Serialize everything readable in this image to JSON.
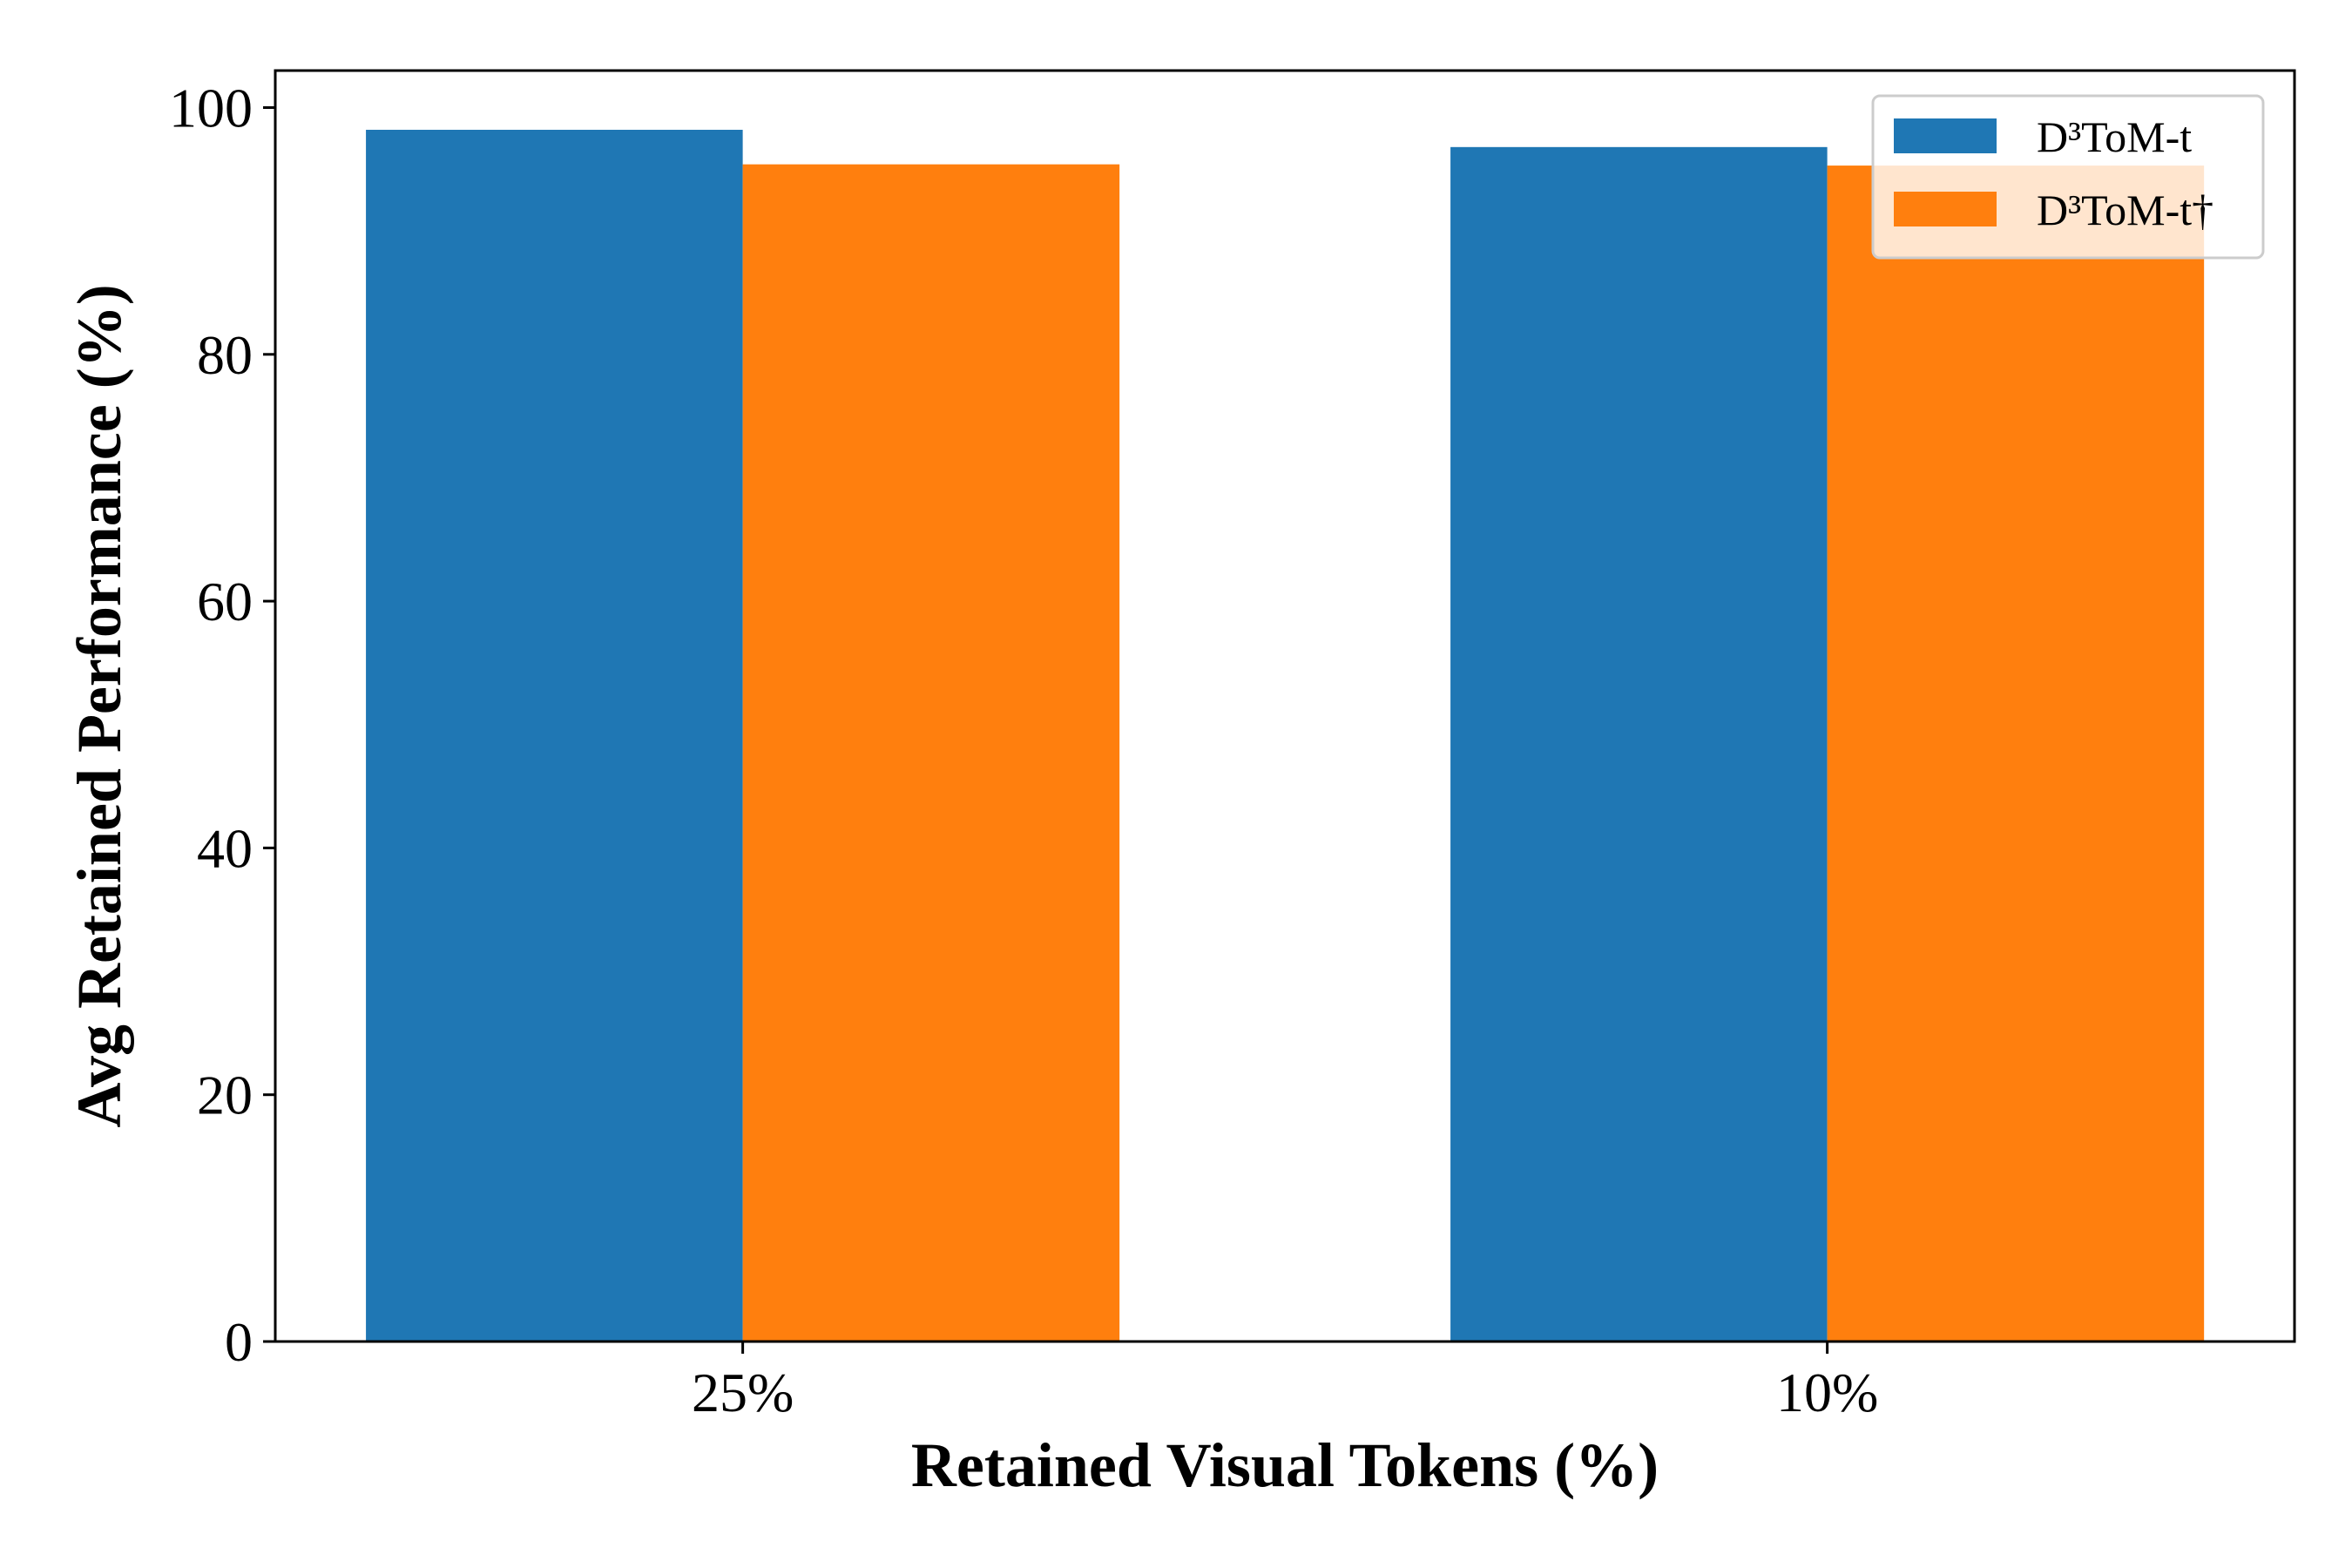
{
  "chart_data": {
    "type": "bar",
    "title": "",
    "xlabel": "Retained Visual Tokens (%)",
    "ylabel": "Avg Retained Performance (%)",
    "categories": [
      "25%",
      "10%"
    ],
    "series": [
      {
        "name": "D³ToM-t",
        "color": "#1f77b4",
        "values": [
          98.2,
          96.8
        ]
      },
      {
        "name": "D³ToM-t†",
        "color": "#ff7f0e",
        "values": [
          95.4,
          95.3
        ]
      }
    ],
    "ylim": [
      0,
      103
    ],
    "yticks": [
      0,
      20,
      40,
      60,
      80,
      100
    ],
    "grid": false,
    "legend": "top-right"
  }
}
